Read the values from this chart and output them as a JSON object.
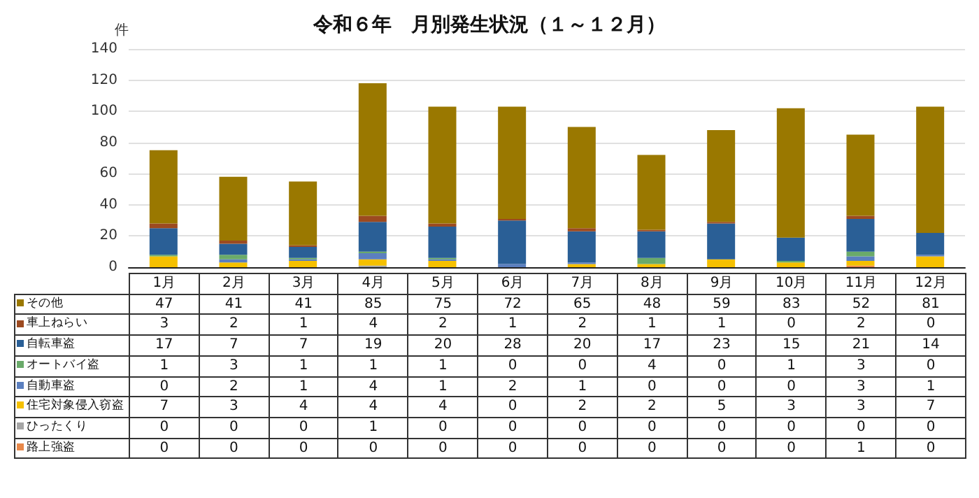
{
  "chart_data": {
    "type": "bar",
    "title": "令和６年　月別発生状況（１～１２月）",
    "ylabel": "件",
    "categories": [
      "1月",
      "2月",
      "3月",
      "4月",
      "5月",
      "6月",
      "7月",
      "8月",
      "9月",
      "10月",
      "11月",
      "12月"
    ],
    "stacked": true,
    "ylim": [
      0,
      140
    ],
    "yticks": [
      0,
      20,
      40,
      60,
      80,
      100,
      120,
      140
    ],
    "grid": "y",
    "legend": "bottom",
    "data_labels": true,
    "series": [
      {
        "name": "路上強盗",
        "color": "#e8884a",
        "values": [
          0,
          0,
          0,
          0,
          0,
          0,
          0,
          0,
          0,
          0,
          1,
          0
        ]
      },
      {
        "name": "ひったくり",
        "color": "#a6a6a6",
        "values": [
          0,
          0,
          0,
          1,
          0,
          0,
          0,
          0,
          0,
          0,
          0,
          0
        ]
      },
      {
        "name": "住宅対象侵入窃盗",
        "color": "#f5c000",
        "values": [
          7,
          3,
          4,
          4,
          4,
          0,
          2,
          2,
          5,
          3,
          3,
          7
        ]
      },
      {
        "name": "自動車盗",
        "color": "#5b7fbf",
        "values": [
          0,
          2,
          1,
          4,
          1,
          2,
          1,
          0,
          0,
          0,
          3,
          1
        ]
      },
      {
        "name": "オートバイ盗",
        "color": "#6aaa6a",
        "values": [
          1,
          3,
          1,
          1,
          1,
          0,
          0,
          4,
          0,
          1,
          3,
          0
        ]
      },
      {
        "name": "自転車盗",
        "color": "#2a5f96",
        "values": [
          17,
          7,
          7,
          19,
          20,
          28,
          20,
          17,
          23,
          15,
          21,
          14
        ]
      },
      {
        "name": "車上ねらい",
        "color": "#9c4a20",
        "values": [
          3,
          2,
          1,
          4,
          2,
          1,
          2,
          1,
          1,
          0,
          2,
          0
        ]
      },
      {
        "name": "その他",
        "color": "#9a7800",
        "values": [
          47,
          41,
          41,
          85,
          75,
          72,
          65,
          48,
          59,
          83,
          52,
          81
        ]
      }
    ]
  }
}
